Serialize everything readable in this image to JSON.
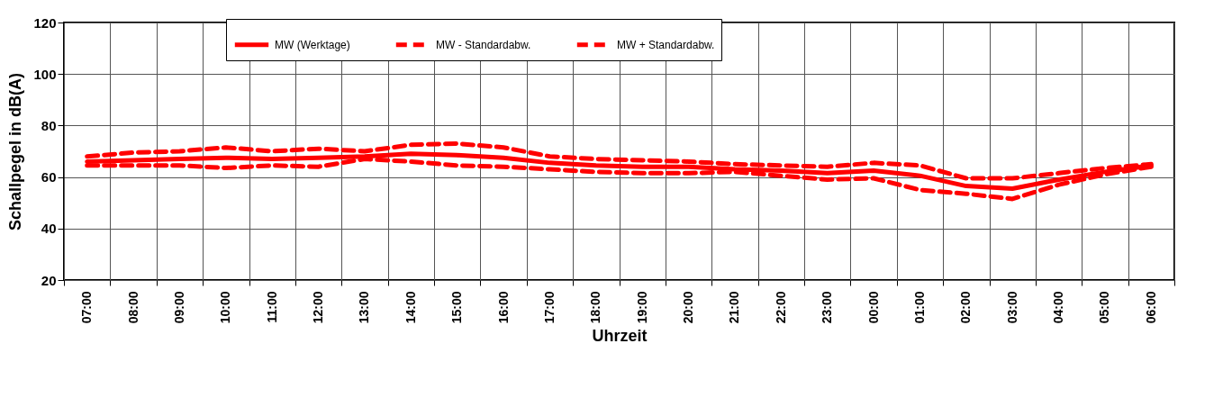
{
  "chart_data": {
    "type": "line",
    "xlabel": "Uhrzeit",
    "ylabel": "Schallpegel in dB(A)",
    "categories": [
      "07:00",
      "08:00",
      "09:00",
      "10:00",
      "11:00",
      "12:00",
      "13:00",
      "14:00",
      "15:00",
      "16:00",
      "17:00",
      "18:00",
      "19:00",
      "20:00",
      "21:00",
      "22:00",
      "23:00",
      "00:00",
      "01:00",
      "02:00",
      "03:00",
      "04:00",
      "05:00",
      "06:00"
    ],
    "series": [
      {
        "name": "MW (Werktage)",
        "color": "#ff0000",
        "line_style": "solid",
        "values": [
          66,
          66.5,
          67,
          67.5,
          67,
          67.5,
          68,
          69,
          68.5,
          67.5,
          65.5,
          64.5,
          64,
          64,
          63,
          62.5,
          61.5,
          62.5,
          60.5,
          56.5,
          55.5,
          59,
          62,
          64.5
        ]
      },
      {
        "name": "MW - Standardabw.",
        "color": "#ff0000",
        "line_style": "dashed",
        "values": [
          64.5,
          64.5,
          64.5,
          63.5,
          64.5,
          64,
          67,
          66,
          64.5,
          64,
          63,
          62,
          61.5,
          61.5,
          62,
          60.5,
          59,
          59.5,
          55,
          53.5,
          51.5,
          57,
          61,
          64
        ]
      },
      {
        "name": "MW + Standardabw.",
        "color": "#ff0000",
        "line_style": "dashed",
        "values": [
          68,
          69.5,
          70,
          71.5,
          70,
          71,
          70,
          72.5,
          73,
          71.5,
          68,
          67,
          66.5,
          66,
          65,
          64.5,
          64,
          65.5,
          64.5,
          59.5,
          59.5,
          61.5,
          63.5,
          65
        ]
      }
    ],
    "ylim": [
      20,
      120
    ],
    "yticks": [
      20,
      40,
      60,
      80,
      100,
      120
    ],
    "grid": true,
    "legend": "top"
  }
}
